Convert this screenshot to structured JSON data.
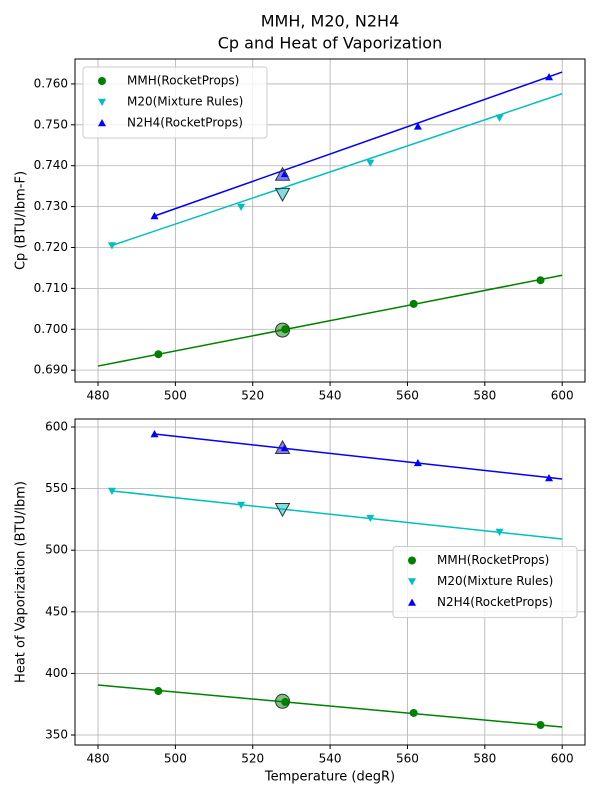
{
  "chart_data": [
    {
      "type": "line",
      "title": "MMH, M20, N2H4",
      "subtitle": "Cp and Heat of Vaporization",
      "ylabel": "Cp (BTU/lbm-F)",
      "xlim": [
        474.05,
        605.9
      ],
      "xticks": [
        480,
        500,
        520,
        540,
        560,
        580,
        600
      ],
      "ylim": [
        0.6871,
        0.7661
      ],
      "yticks": [
        {
          "value": 0.69,
          "label": "0.690"
        },
        {
          "value": 0.7,
          "label": "0.700"
        },
        {
          "value": 0.71,
          "label": "0.710"
        },
        {
          "value": 0.72,
          "label": "0.720"
        },
        {
          "value": 0.73,
          "label": "0.730"
        },
        {
          "value": 0.74,
          "label": "0.740"
        },
        {
          "value": 0.75,
          "label": "0.750"
        },
        {
          "value": 0.76,
          "label": "0.760"
        }
      ],
      "grid": true,
      "legend": "upper left",
      "series": [
        {
          "name": "MMH(RocketProps)",
          "color": "#008000",
          "marker": "o",
          "x": [
            495.6,
            528.4,
            561.6,
            594.4
          ],
          "values": [
            0.6939,
            0.7,
            0.7062,
            0.712
          ],
          "line_x": [
            480,
            600
          ],
          "line_values": [
            0.691,
            0.7132
          ],
          "highlight_x": 527.7,
          "highlight_value": 0.6998
        },
        {
          "name": "M20(Mixture Rules)",
          "color": "#00bfbf",
          "marker": "v",
          "x": [
            483.6,
            517,
            550.4,
            583.8
          ],
          "values": [
            0.7205,
            0.7299,
            0.7407,
            0.7517
          ],
          "line_x": [
            483.6,
            600
          ],
          "line_values": [
            0.7205,
            0.7576
          ],
          "highlight_x": 527.7,
          "highlight_value": 0.7331
        },
        {
          "name": "N2H4(RocketProps)",
          "color": "#0000ff",
          "marker": "^",
          "x": [
            494.6,
            528.3,
            562.7,
            596.6
          ],
          "values": [
            0.7277,
            0.738,
            0.7496,
            0.7617
          ],
          "line_x": [
            494.6,
            600
          ],
          "line_values": [
            0.7277,
            0.7629
          ],
          "highlight_x": 527.7,
          "highlight_value": 0.7378
        }
      ]
    },
    {
      "type": "line",
      "xlabel": "Temperature (degR)",
      "ylabel": "Heat of Vaporization (BTU/lbm)",
      "xlim": [
        474.05,
        605.9
      ],
      "xticks": [
        480,
        500,
        520,
        540,
        560,
        580,
        600
      ],
      "ylim": [
        341.9,
        606.5
      ],
      "yticks": [
        350,
        400,
        450,
        500,
        550,
        600
      ],
      "grid": true,
      "legend": "center right",
      "series": [
        {
          "name": "MMH(RocketProps)",
          "color": "#008000",
          "marker": "o",
          "x": [
            495.6,
            528.4,
            561.6,
            594.4
          ],
          "values": [
            385.7,
            376.8,
            367.9,
            358.1
          ],
          "line_x": [
            480,
            600
          ],
          "line_values": [
            390.6,
            356.5
          ],
          "highlight_x": 527.7,
          "highlight_value": 377.4
        },
        {
          "name": "M20(Mixture Rules)",
          "color": "#00bfbf",
          "marker": "v",
          "x": [
            483.6,
            517,
            550.4,
            583.8
          ],
          "values": [
            548.1,
            536.7,
            526.1,
            514.8
          ],
          "line_x": [
            483.6,
            600
          ],
          "line_values": [
            548.1,
            509.1
          ],
          "highlight_x": 527.7,
          "highlight_value": 533.4
        },
        {
          "name": "N2H4(RocketProps)",
          "color": "#0000ff",
          "marker": "^",
          "x": [
            494.6,
            528.3,
            562.7,
            596.6
          ],
          "values": [
            594.3,
            583,
            570.8,
            558.6
          ],
          "line_x": [
            494.6,
            600
          ],
          "line_values": [
            594.3,
            557.8
          ],
          "highlight_x": 527.7,
          "highlight_value": 583
        }
      ]
    }
  ]
}
